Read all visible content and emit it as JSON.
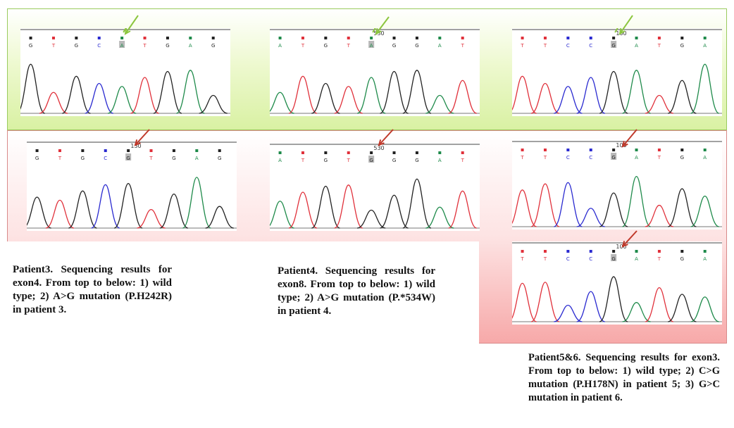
{
  "panels": [
    {
      "bases": [
        "G",
        "T",
        "G",
        "C",
        "A",
        "T",
        "G",
        "A",
        "G"
      ],
      "highlight": 4,
      "number": "",
      "arrow": "green",
      "row": "wild-type"
    },
    {
      "bases": [
        "A",
        "T",
        "G",
        "T",
        "A",
        "G",
        "G",
        "A",
        "T"
      ],
      "highlight": 4,
      "number": "530",
      "arrow": "green",
      "row": "wild-type"
    },
    {
      "bases": [
        "T",
        "T",
        "C",
        "C",
        "G",
        "A",
        "T",
        "G",
        "A"
      ],
      "highlight": 4,
      "number": "100",
      "arrow": "green",
      "row": "wild-type"
    },
    {
      "bases": [
        "G",
        "T",
        "G",
        "C",
        "G",
        "T",
        "G",
        "A",
        "G"
      ],
      "highlight": 4,
      "number": "130",
      "arrow": "red",
      "row": "mutant"
    },
    {
      "bases": [
        "A",
        "T",
        "G",
        "T",
        "G",
        "G",
        "G",
        "A",
        "T"
      ],
      "highlight": 4,
      "number": "530",
      "arrow": "red",
      "row": "mutant"
    },
    {
      "bases": [
        "T",
        "T",
        "C",
        "C",
        "G",
        "A",
        "T",
        "G",
        "A"
      ],
      "highlight": 4,
      "number": "100",
      "arrow": "red",
      "row": "mutant"
    },
    {
      "bases": [
        "T",
        "T",
        "C",
        "C",
        "G",
        "A",
        "T",
        "G",
        "A"
      ],
      "highlight": 4,
      "number": "100",
      "arrow": "red",
      "row": "mutant"
    }
  ],
  "captions": {
    "patient3": "Patient3. Sequencing results for exon4. From top to below: 1) wild type; 2) A>G mutation (P.H242R) in patient 3.",
    "patient4": "Patient4. Sequencing results for exon8. From top to below: 1) wild type; 2) A>G mutation (P.*534W) in patient 4.",
    "patient56": "Patient5&6. Sequencing results for exon3. From top to below: 1) wild type; 2) C>G mutation (P.H178N) in patient 5; 3) G>C mutation in patient 6."
  },
  "colors": {
    "A": "#1e8a4a",
    "T": "#e0303a",
    "G": "#222222",
    "C": "#2a2ad0",
    "arrow_green": "#8cc63f",
    "arrow_red": "#c0392b"
  }
}
